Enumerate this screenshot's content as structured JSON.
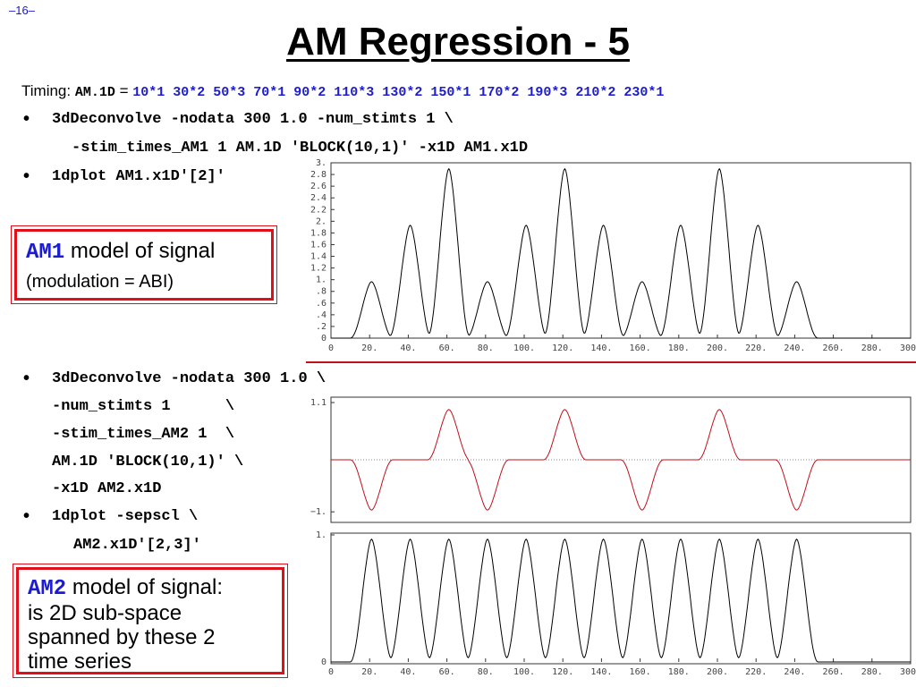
{
  "page_number": "–16–",
  "title": "AM Regression - 5",
  "timing": {
    "label": "Timing:",
    "file": "AM.1D",
    "equals": "=",
    "values": "10*1 30*2 50*3 70*1 90*2 110*3 130*2 150*1 170*2 190*3 210*2 230*1"
  },
  "bullet_char": "•",
  "lines_top": [
    "3dDeconvolve -nodata 300 1.0 -num_stimts 1 \\",
    "-stim_times_AM1 1 AM.1D 'BLOCK(10,1)' -x1D AM1.x1D",
    "1dplot AM1.x1D'[2]'"
  ],
  "lines_bottom": [
    "3dDeconvolve -nodata 300 1.0 \\",
    "-num_stimts 1      \\",
    "-stim_times_AM2 1  \\",
    "AM.1D 'BLOCK(10,1)' \\",
    "-x1D AM2.x1D",
    "1dplot -sepscl \\",
    "AM2.x1D'[2,3]'"
  ],
  "box1": {
    "keyword": "AM1",
    "text": " model of signal",
    "sub": "(modulation = ABI)"
  },
  "box2": {
    "keyword": "AM2",
    "text": " model of signal:",
    "lines": [
      "is 2D sub-space",
      "spanned by these 2",
      "time series"
    ]
  },
  "colors": {
    "accent_red": "#e0101a",
    "keyword_blue": "#1c1cd0",
    "curve_red": "#c0101a",
    "curve_black": "#000000"
  },
  "chart_data": [
    {
      "type": "line",
      "series": [
        {
          "blocks": [
            [
              10,
              1
            ],
            [
              30,
              2
            ],
            [
              50,
              3
            ],
            [
              70,
              1
            ],
            [
              90,
              2
            ],
            [
              110,
              3
            ],
            [
              130,
              2
            ],
            [
              150,
              1
            ],
            [
              170,
              2
            ],
            [
              190,
              3
            ],
            [
              210,
              2
            ],
            [
              230,
              1
            ]
          ]
        }
      ],
      "x_ticks": [
        "0",
        "20.",
        "40.",
        "60.",
        "80.",
        "100.",
        "120.",
        "140.",
        "160.",
        "180.",
        "200.",
        "220.",
        "240.",
        "260.",
        "280.",
        "300."
      ],
      "y_ticks": [
        "0",
        ".2",
        ".4",
        ".6",
        ".8",
        "1.",
        "1.2",
        "1.4",
        "1.6",
        "1.8",
        "2.",
        "2.2",
        "2.4",
        "2.6",
        "2.8",
        "3."
      ],
      "xlim": [
        0,
        300
      ],
      "ylim": [
        0,
        3
      ]
    },
    {
      "type": "line",
      "series": [
        {
          "blocks": [
            [
              10,
              -1
            ],
            [
              30,
              0
            ],
            [
              50,
              1
            ],
            [
              70,
              -1
            ],
            [
              90,
              0
            ],
            [
              110,
              1
            ],
            [
              130,
              0
            ],
            [
              150,
              -1
            ],
            [
              170,
              0
            ],
            [
              190,
              1
            ],
            [
              210,
              0
            ],
            [
              230,
              -1
            ]
          ]
        }
      ],
      "y_ticks": [
        "1.1",
        "−1."
      ],
      "ylim": [
        -1.1,
        1.1
      ]
    },
    {
      "type": "line",
      "series": [
        {
          "blocks": [
            [
              10,
              1
            ],
            [
              30,
              1
            ],
            [
              50,
              1
            ],
            [
              70,
              1
            ],
            [
              90,
              1
            ],
            [
              110,
              1
            ],
            [
              130,
              1
            ],
            [
              150,
              1
            ],
            [
              170,
              1
            ],
            [
              190,
              1
            ],
            [
              210,
              1
            ],
            [
              230,
              1
            ]
          ]
        }
      ],
      "x_ticks": [
        "0",
        "20.",
        "40.",
        "60.",
        "80.",
        "100.",
        "120.",
        "140.",
        "160.",
        "180.",
        "200.",
        "220.",
        "240.",
        "260.",
        "280.",
        "300."
      ],
      "y_ticks": [
        "1.",
        "0"
      ],
      "xlim": [
        0,
        300
      ],
      "ylim": [
        0,
        1
      ]
    }
  ]
}
